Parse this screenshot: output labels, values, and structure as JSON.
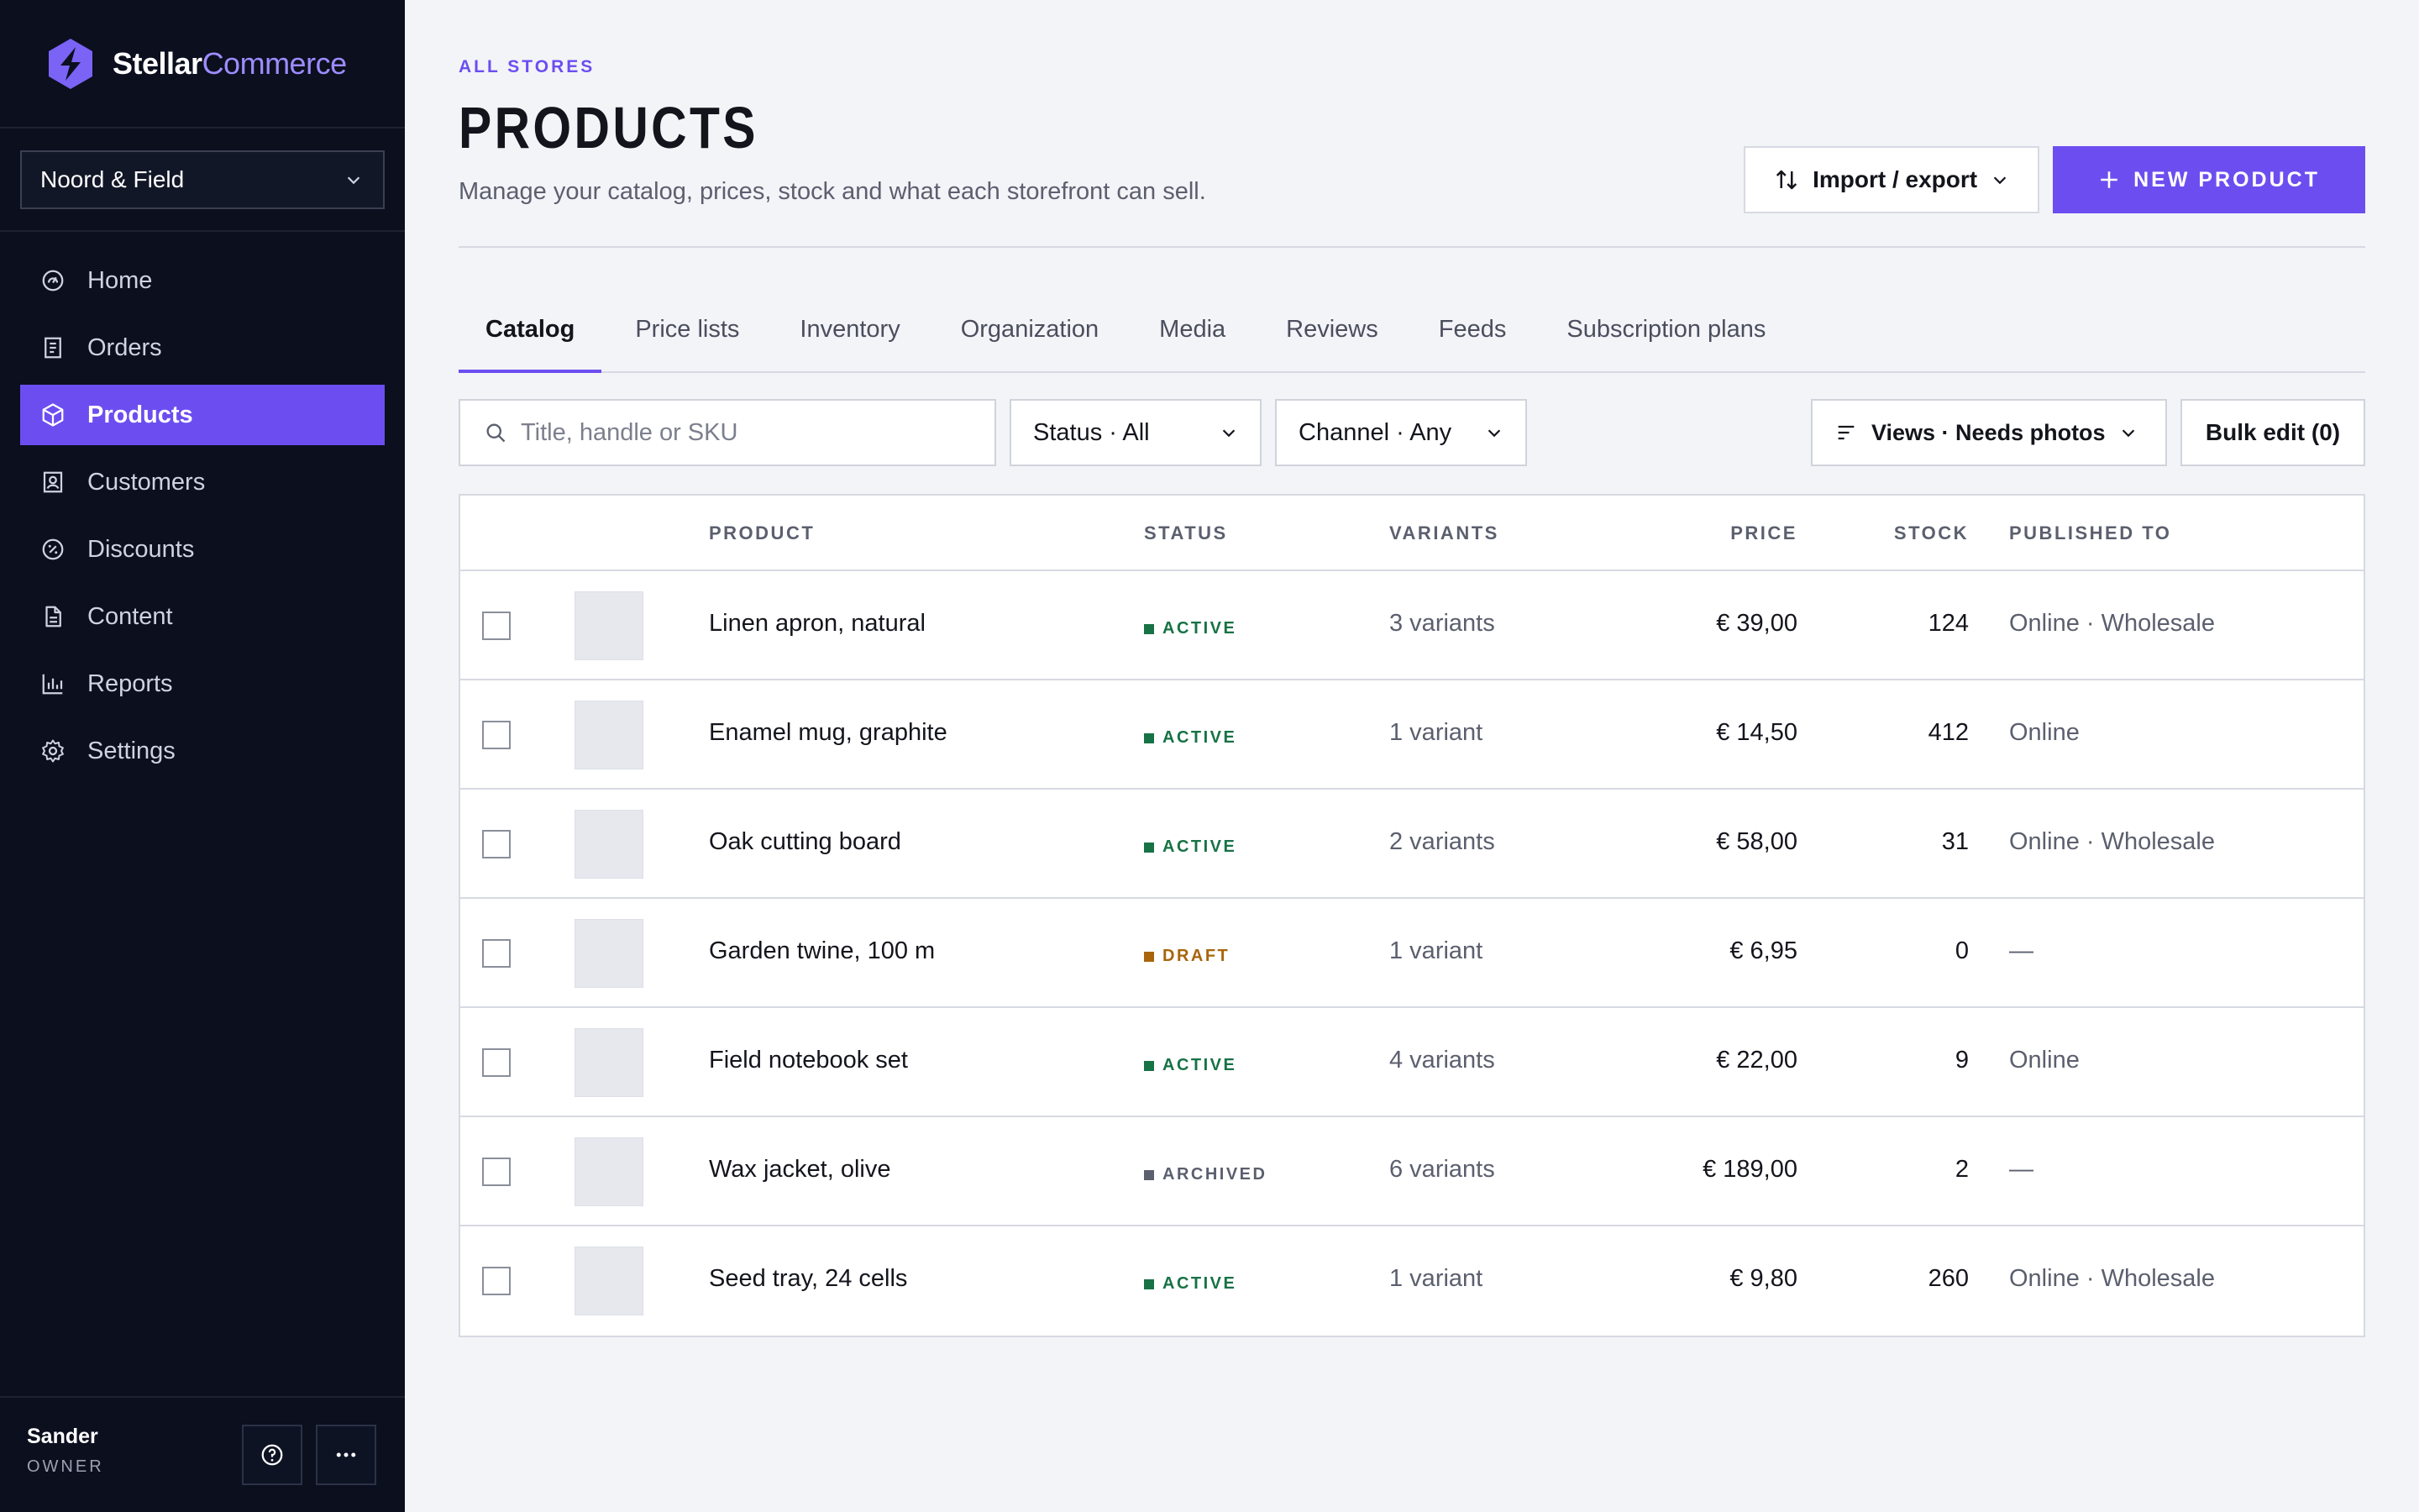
{
  "brand": {
    "name_part1": "Stellar",
    "name_part2": "Commerce"
  },
  "store_selector": {
    "value": "Noord & Field"
  },
  "nav": [
    {
      "label": "Home",
      "icon": "home-icon",
      "active": false
    },
    {
      "label": "Orders",
      "icon": "orders-icon",
      "active": false
    },
    {
      "label": "Products",
      "icon": "box-icon",
      "active": true
    },
    {
      "label": "Customers",
      "icon": "customer-icon",
      "active": false
    },
    {
      "label": "Discounts",
      "icon": "discount-icon",
      "active": false
    },
    {
      "label": "Content",
      "icon": "document-icon",
      "active": false
    },
    {
      "label": "Reports",
      "icon": "bar-chart-icon",
      "active": false
    },
    {
      "label": "Settings",
      "icon": "gear-icon",
      "active": false
    }
  ],
  "user": {
    "name": "Sander",
    "role": "OWNER"
  },
  "header": {
    "eyebrow": "ALL STORES",
    "title": "PRODUCTS",
    "subtitle": "Manage your catalog, prices, stock and what each storefront can sell.",
    "import_label": "Import / export",
    "new_label": "NEW PRODUCT"
  },
  "tabs": [
    {
      "label": "Catalog",
      "active": true
    },
    {
      "label": "Price lists",
      "active": false
    },
    {
      "label": "Inventory",
      "active": false
    },
    {
      "label": "Organization",
      "active": false
    },
    {
      "label": "Media",
      "active": false
    },
    {
      "label": "Reviews",
      "active": false
    },
    {
      "label": "Feeds",
      "active": false
    },
    {
      "label": "Subscription plans",
      "active": false
    }
  ],
  "filters": {
    "search_placeholder": "Title, handle or SKU",
    "status": "Status · All",
    "channel": "Channel · Any",
    "views": "Views · Needs photos",
    "bulk_edit": "Bulk edit (0)"
  },
  "table": {
    "columns": {
      "product": "PRODUCT",
      "status": "STATUS",
      "variants": "VARIANTS",
      "price": "PRICE",
      "stock": "STOCK",
      "published": "PUBLISHED TO"
    },
    "rows": [
      {
        "name": "Linen apron, natural",
        "status": "ACTIVE",
        "variants": "3 variants",
        "price": "€ 39,00",
        "stock": "124",
        "published": "Online · Wholesale"
      },
      {
        "name": "Enamel mug, graphite",
        "status": "ACTIVE",
        "variants": "1 variant",
        "price": "€ 14,50",
        "stock": "412",
        "published": "Online"
      },
      {
        "name": "Oak cutting board",
        "status": "ACTIVE",
        "variants": "2 variants",
        "price": "€ 58,00",
        "stock": "31",
        "published": "Online · Wholesale"
      },
      {
        "name": "Garden twine, 100 m",
        "status": "DRAFT",
        "variants": "1 variant",
        "price": "€ 6,95",
        "stock": "0",
        "published": "—"
      },
      {
        "name": "Field notebook set",
        "status": "ACTIVE",
        "variants": "4 variants",
        "price": "€ 22,00",
        "stock": "9",
        "published": "Online"
      },
      {
        "name": "Wax jacket, olive",
        "status": "ARCHIVED",
        "variants": "6 variants",
        "price": "€ 189,00",
        "stock": "2",
        "published": "—"
      },
      {
        "name": "Seed tray, 24 cells",
        "status": "ACTIVE",
        "variants": "1 variant",
        "price": "€ 9,80",
        "stock": "260",
        "published": "Online · Wholesale"
      }
    ]
  },
  "colors": {
    "accent": "#6c4ef0",
    "sidebar_bg": "#0b0f1e",
    "status_active": "#177245",
    "status_draft": "#a8650b",
    "status_archived": "#5b5f6e"
  }
}
